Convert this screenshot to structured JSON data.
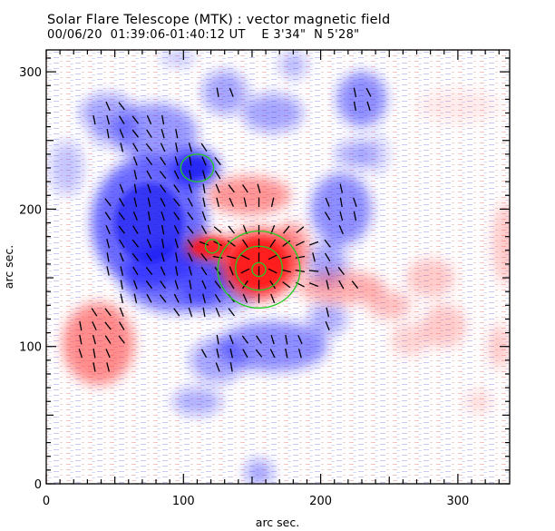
{
  "chart_data": {
    "type": "heatmap",
    "title": "Solar Flare Telescope (MTK) : vector magnetic field",
    "subtitle": "00/06/20  01:39:06-01:40:12 UT    E 3'34\"  N 5'28\"",
    "xlabel": "arc sec.",
    "ylabel": "arc sec.",
    "xlim": [
      0,
      338
    ],
    "ylim": [
      0,
      316
    ],
    "x_ticks": [
      {
        "value": 0,
        "label": "0"
      },
      {
        "value": 100,
        "label": "100"
      },
      {
        "value": 200,
        "label": "200"
      },
      {
        "value": 300,
        "label": "300"
      }
    ],
    "y_ticks": [
      {
        "value": 0,
        "label": "0"
      },
      {
        "value": 100,
        "label": "100"
      },
      {
        "value": 200,
        "label": "200"
      },
      {
        "value": 300,
        "label": "300"
      }
    ],
    "minor_tick_step": 10,
    "colors": {
      "positive": "#ff3030",
      "negative": "#2020ff",
      "contour": "#22cc22",
      "vector": "#000000"
    },
    "positive_regions": [
      {
        "x": 155,
        "y": 160,
        "rx": 28,
        "ry": 26,
        "strength": 1.0
      },
      {
        "x": 120,
        "y": 172,
        "rx": 20,
        "ry": 10,
        "strength": 0.8
      },
      {
        "x": 148,
        "y": 210,
        "rx": 30,
        "ry": 14,
        "strength": 0.6
      },
      {
        "x": 178,
        "y": 170,
        "rx": 14,
        "ry": 20,
        "strength": 0.6
      },
      {
        "x": 38,
        "y": 102,
        "rx": 26,
        "ry": 30,
        "strength": 0.65
      },
      {
        "x": 215,
        "y": 143,
        "rx": 32,
        "ry": 12,
        "strength": 0.45
      },
      {
        "x": 250,
        "y": 130,
        "rx": 16,
        "ry": 10,
        "strength": 0.35
      },
      {
        "x": 280,
        "y": 150,
        "rx": 18,
        "ry": 14,
        "strength": 0.3
      },
      {
        "x": 290,
        "y": 115,
        "rx": 16,
        "ry": 16,
        "strength": 0.3
      },
      {
        "x": 265,
        "y": 105,
        "rx": 14,
        "ry": 12,
        "strength": 0.25
      },
      {
        "x": 335,
        "y": 175,
        "rx": 10,
        "ry": 30,
        "strength": 0.3
      },
      {
        "x": 330,
        "y": 100,
        "rx": 8,
        "ry": 16,
        "strength": 0.3
      },
      {
        "x": 315,
        "y": 60,
        "rx": 10,
        "ry": 8,
        "strength": 0.2
      },
      {
        "x": 300,
        "y": 275,
        "rx": 30,
        "ry": 12,
        "strength": 0.12
      }
    ],
    "negative_regions": [
      {
        "x": 75,
        "y": 190,
        "rx": 42,
        "ry": 48,
        "strength": 0.8
      },
      {
        "x": 108,
        "y": 230,
        "rx": 18,
        "ry": 14,
        "strength": 0.95
      },
      {
        "x": 95,
        "y": 150,
        "rx": 40,
        "ry": 25,
        "strength": 0.7
      },
      {
        "x": 125,
        "y": 145,
        "rx": 30,
        "ry": 20,
        "strength": 0.55
      },
      {
        "x": 80,
        "y": 255,
        "rx": 30,
        "ry": 22,
        "strength": 0.55
      },
      {
        "x": 45,
        "y": 270,
        "rx": 20,
        "ry": 14,
        "strength": 0.45
      },
      {
        "x": 130,
        "y": 285,
        "rx": 16,
        "ry": 16,
        "strength": 0.45
      },
      {
        "x": 165,
        "y": 270,
        "rx": 22,
        "ry": 14,
        "strength": 0.45
      },
      {
        "x": 230,
        "y": 280,
        "rx": 18,
        "ry": 20,
        "strength": 0.6
      },
      {
        "x": 225,
        "y": 240,
        "rx": 14,
        "ry": 10,
        "strength": 0.4
      },
      {
        "x": 215,
        "y": 200,
        "rx": 22,
        "ry": 26,
        "strength": 0.6
      },
      {
        "x": 205,
        "y": 160,
        "rx": 14,
        "ry": 16,
        "strength": 0.45
      },
      {
        "x": 165,
        "y": 100,
        "rx": 40,
        "ry": 18,
        "strength": 0.6
      },
      {
        "x": 125,
        "y": 90,
        "rx": 20,
        "ry": 16,
        "strength": 0.45
      },
      {
        "x": 110,
        "y": 60,
        "rx": 18,
        "ry": 10,
        "strength": 0.4
      },
      {
        "x": 155,
        "y": 8,
        "rx": 10,
        "ry": 10,
        "strength": 0.45
      },
      {
        "x": 50,
        "y": 255,
        "rx": 18,
        "ry": 10,
        "strength": 0.35
      },
      {
        "x": 205,
        "y": 120,
        "rx": 14,
        "ry": 12,
        "strength": 0.4
      },
      {
        "x": 240,
        "y": 240,
        "rx": 10,
        "ry": 14,
        "strength": 0.25
      },
      {
        "x": 15,
        "y": 230,
        "rx": 12,
        "ry": 20,
        "strength": 0.3
      },
      {
        "x": 180,
        "y": 305,
        "rx": 10,
        "ry": 10,
        "strength": 0.35
      },
      {
        "x": 96,
        "y": 310,
        "rx": 12,
        "ry": 6,
        "strength": 0.3
      }
    ],
    "contours": [
      {
        "cx": 155,
        "cy": 156,
        "rx": 30,
        "ry": 28,
        "level": 1
      },
      {
        "cx": 155,
        "cy": 157,
        "rx": 17,
        "ry": 16,
        "level": 2
      },
      {
        "cx": 155,
        "cy": 156,
        "rx": 5,
        "ry": 5,
        "level": 3
      },
      {
        "cx": 121,
        "cy": 173,
        "rx": 5,
        "ry": 5,
        "level": 1
      },
      {
        "cx": 110,
        "cy": 230,
        "rx": 12,
        "ry": 10,
        "level": 1
      }
    ],
    "vector_field": {
      "grid_step": 10,
      "description_note": "transverse field vectors drawn over strong-field regions"
    }
  }
}
